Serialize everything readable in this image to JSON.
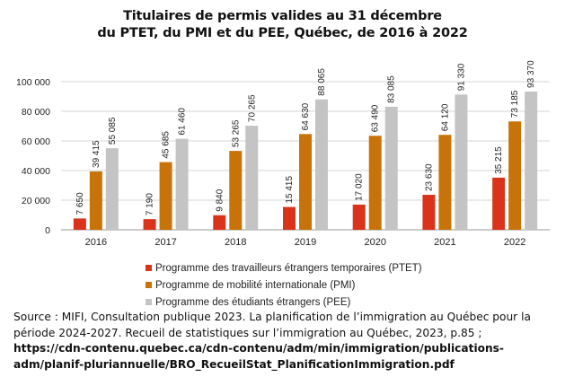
{
  "chart_data": {
    "type": "bar",
    "title_lines": [
      "Titulaires de permis valides au 31 décembre",
      "du PTET, du PMI et du PEE, Québec, de 2016 à 2022"
    ],
    "categories": [
      "2016",
      "2017",
      "2018",
      "2019",
      "2020",
      "2021",
      "2022"
    ],
    "series": [
      {
        "name": "Programme des travailleurs étrangers temporaires (PTET)",
        "color": "#d9341b",
        "values": [
          7650,
          7190,
          9840,
          15415,
          17020,
          23630,
          35215
        ],
        "labels": [
          "7 650",
          "7 190",
          "9 840",
          "15 415",
          "17 020",
          "23 630",
          "35 215"
        ]
      },
      {
        "name": "Programme de mobilité internationale (PMI)",
        "color": "#c8730a",
        "values": [
          39415,
          45685,
          53265,
          64630,
          63490,
          64120,
          73185
        ],
        "labels": [
          "39 415",
          "45 685",
          "53 265",
          "64 630",
          "63 490",
          "64 120",
          "73 185"
        ]
      },
      {
        "name": "Programme des étudiants étrangers (PEE)",
        "color": "#c4c4c4",
        "values": [
          55085,
          61460,
          70265,
          88065,
          83085,
          91330,
          93370
        ],
        "labels": [
          "55 085",
          "61 460",
          "70 265",
          "88 065",
          "83 085",
          "91 330",
          "93 370"
        ]
      }
    ],
    "yticks": [
      0,
      20000,
      40000,
      60000,
      80000,
      100000
    ],
    "ytick_labels": [
      "0",
      "20 000",
      "40 000",
      "60 000",
      "80 000",
      "100 000"
    ],
    "ylim": [
      0,
      100000
    ],
    "grid": true,
    "legend_position": "bottom"
  },
  "source": {
    "text": "Source : MIFI, Consultation publique 2023. La planification de l’immigration au Québec pour la période 2024-2027. Recueil de statistiques sur l’immigration au Québec, 2023, p.85 ; ",
    "url": "https://cdn-contenu.quebec.ca/cdn-contenu/adm/min/immigration/publications-adm/planif-pluriannuelle/BRO_RecueilStat_PlanificationImmigration.pdf"
  }
}
